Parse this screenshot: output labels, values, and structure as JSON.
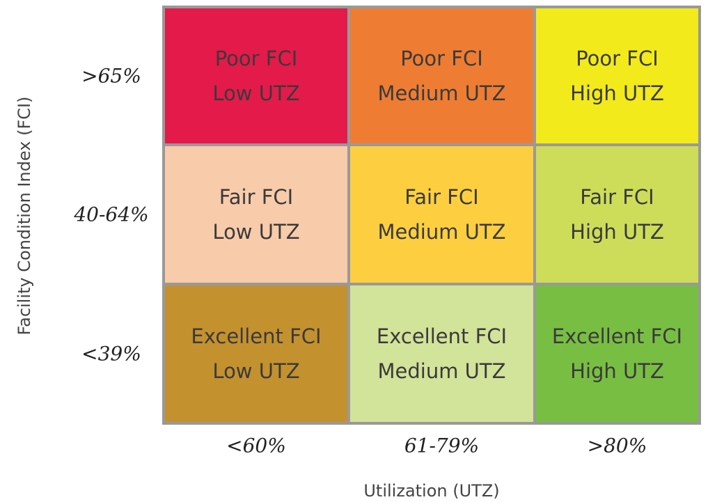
{
  "y_axis_title": "Facility Condition Index (FCI)",
  "x_axis_title": "Utilization (UTZ)",
  "row_labels": [
    ">65%",
    "40-64%",
    "<39%"
  ],
  "column_labels": [
    "<60%",
    "61-79%",
    ">80%"
  ],
  "cells": [
    [
      {
        "lines": [
          "Poor FCI",
          "Low UTZ"
        ],
        "color": "#e41a4a"
      },
      {
        "lines": [
          "Poor FCI",
          "Medium UTZ"
        ],
        "color": "#ee7d33"
      },
      {
        "lines": [
          "Poor FCI",
          "High UTZ"
        ],
        "color": "#f2ea1b"
      }
    ],
    [
      {
        "lines": [
          "Fair FCI",
          "Low UTZ"
        ],
        "color": "#f8cbaa"
      },
      {
        "lines": [
          "Fair FCI",
          "Medium UTZ"
        ],
        "color": "#fdcf40"
      },
      {
        "lines": [
          "Fair FCI",
          "High UTZ"
        ],
        "color": "#cddd5a"
      }
    ],
    [
      {
        "lines": [
          "Excellent FCI",
          "Low UTZ"
        ],
        "color": "#c4912f"
      },
      {
        "lines": [
          "Excellent FCI",
          "Medium UTZ"
        ],
        "color": "#d2e39a"
      },
      {
        "lines": [
          "Excellent FCI",
          "High UTZ"
        ],
        "color": "#78be43"
      }
    ]
  ]
}
